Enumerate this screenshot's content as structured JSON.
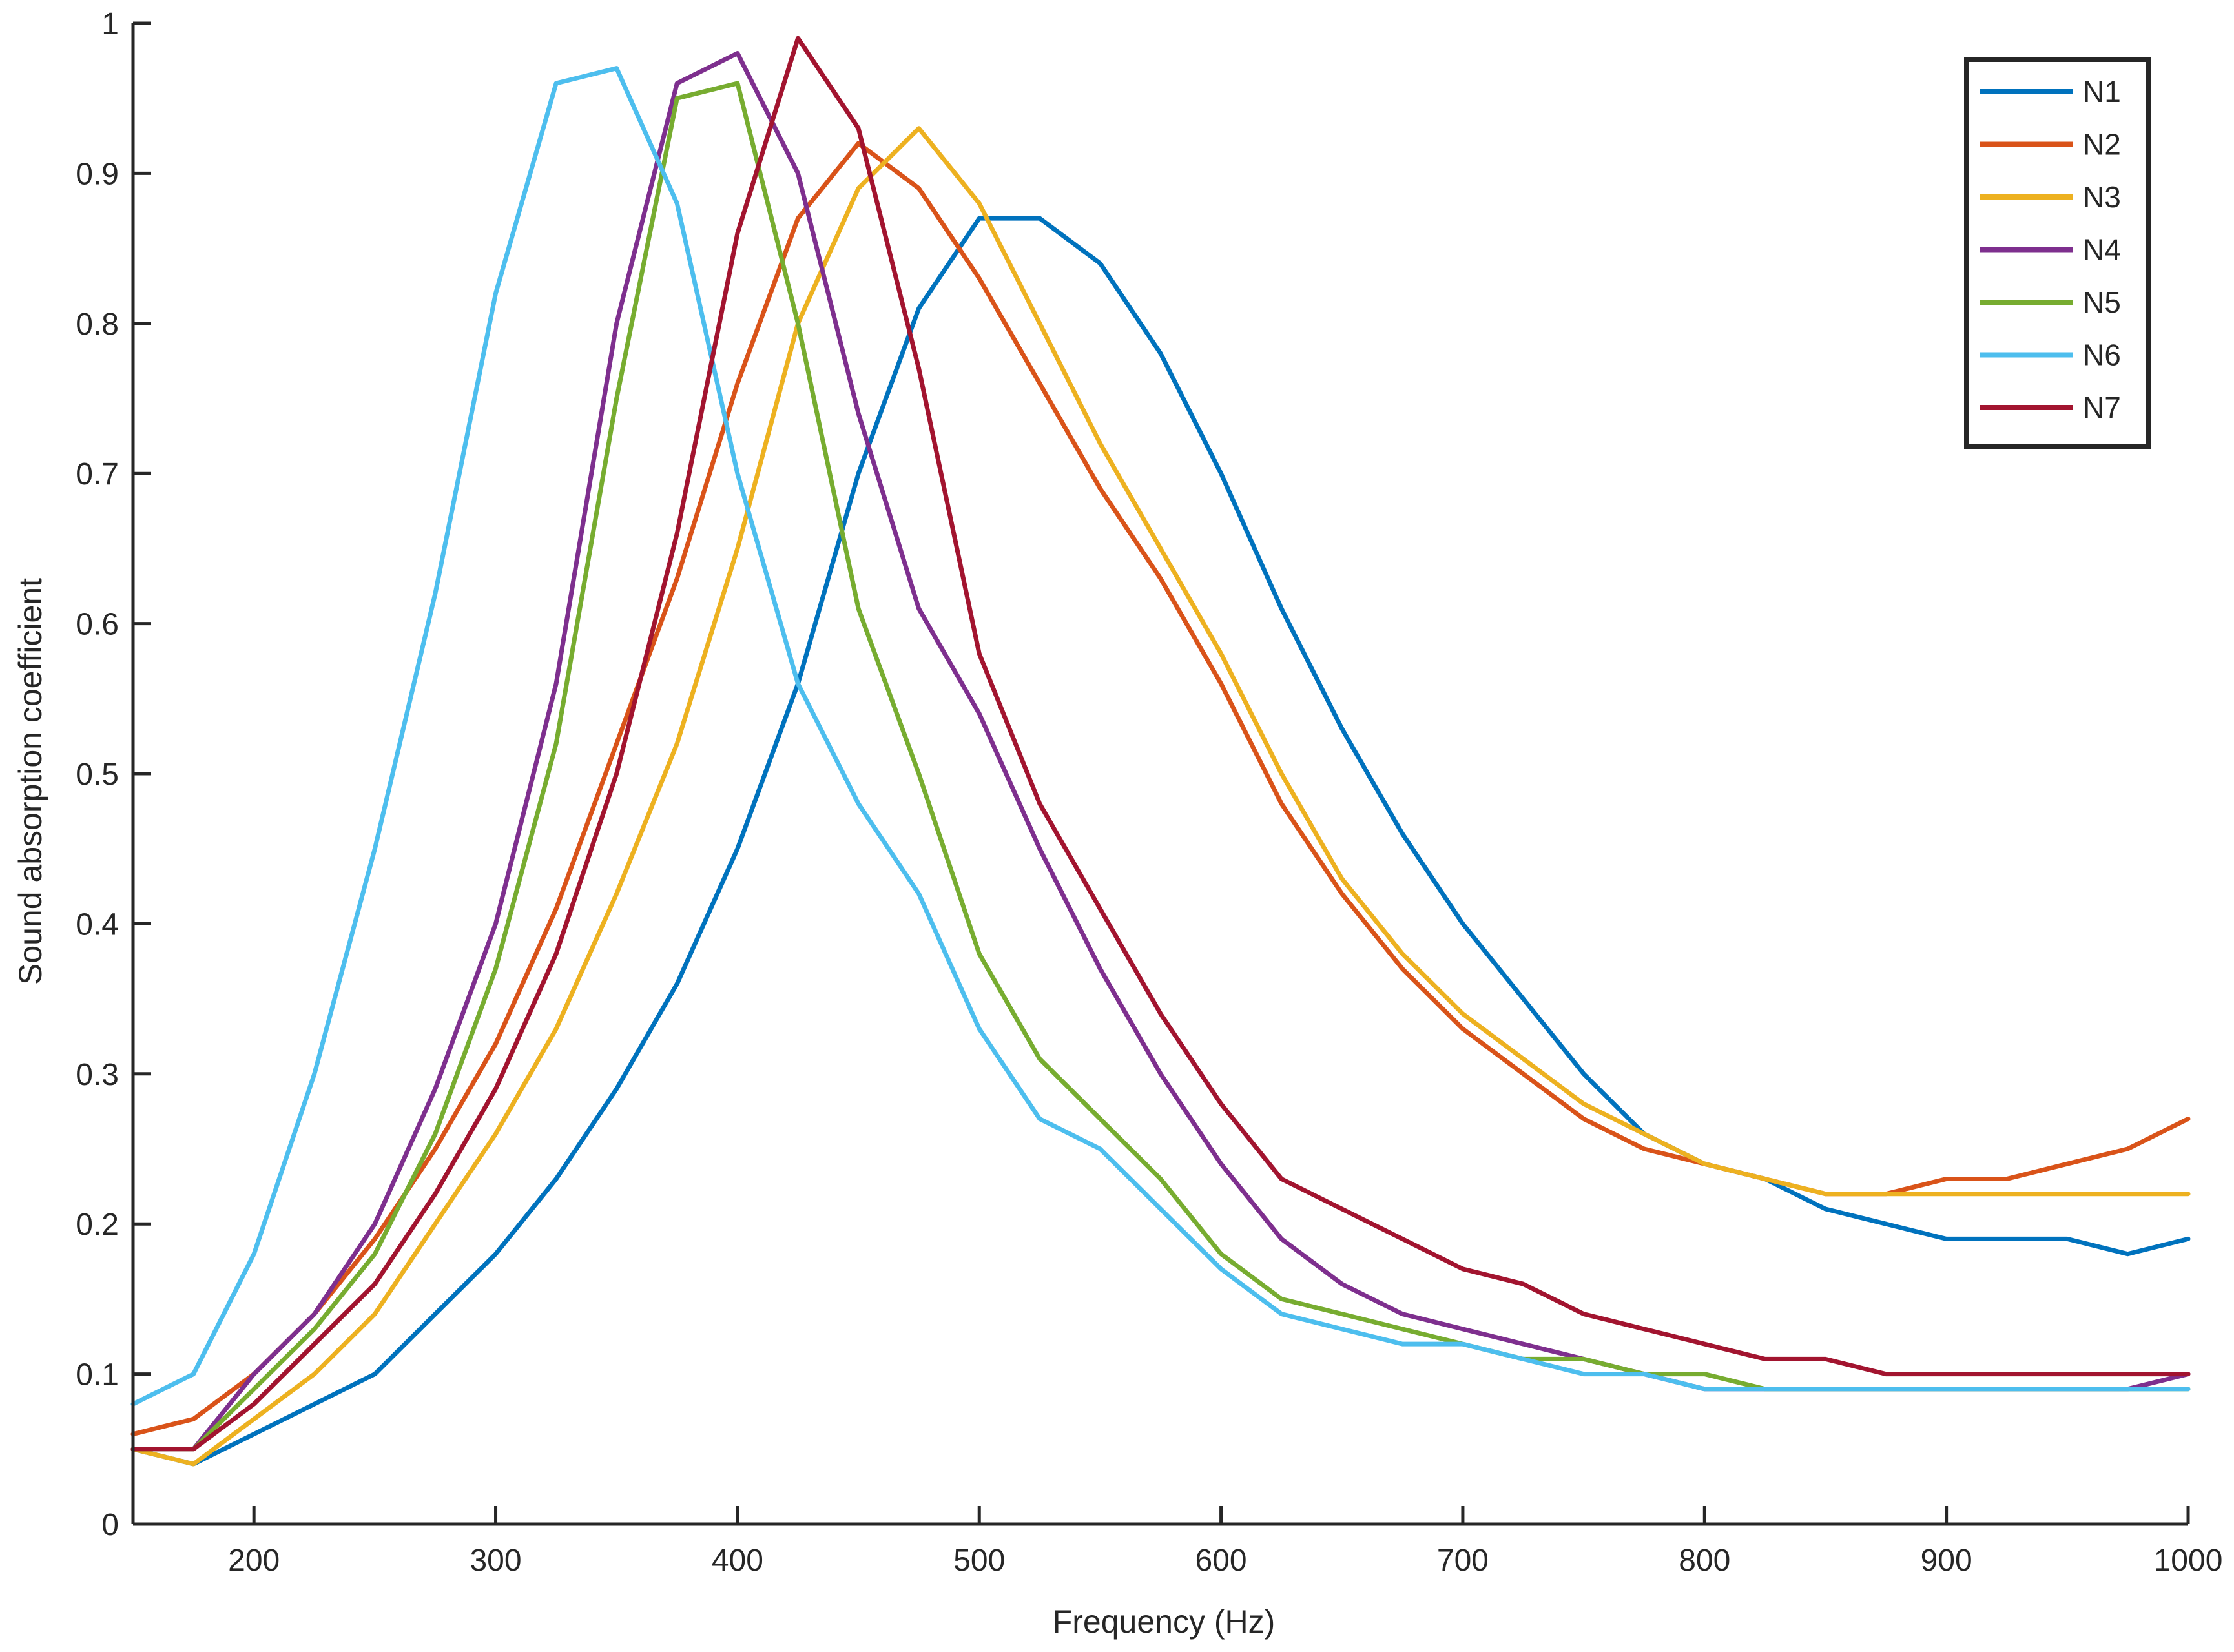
{
  "chart_data": {
    "type": "line",
    "title": "",
    "xlabel": "Frequency (Hz)",
    "ylabel": "Sound absorption coefficient",
    "xlim": [
      150,
      1000
    ],
    "ylim": [
      0,
      1
    ],
    "xticks": [
      200,
      300,
      400,
      500,
      600,
      700,
      800,
      900,
      1000
    ],
    "yticks": [
      0,
      0.1,
      0.2,
      0.3,
      0.4,
      0.5,
      0.6,
      0.7,
      0.8,
      0.9,
      1
    ],
    "ytick_labels": [
      "0",
      "0.1",
      "0.2",
      "0.3",
      "0.4",
      "0.5",
      "0.6",
      "0.7",
      "0.8",
      "0.9",
      "1"
    ],
    "grid": false,
    "legend_position": "top-right",
    "x": [
      150,
      175,
      200,
      225,
      250,
      275,
      300,
      325,
      350,
      375,
      400,
      425,
      450,
      475,
      500,
      525,
      550,
      575,
      600,
      625,
      650,
      675,
      700,
      725,
      750,
      775,
      800,
      825,
      850,
      875,
      900,
      925,
      950,
      975,
      1000
    ],
    "series": [
      {
        "name": "N1",
        "color": "#0072BD",
        "values": [
          0.05,
          0.04,
          0.06,
          0.08,
          0.1,
          0.14,
          0.18,
          0.23,
          0.29,
          0.36,
          0.45,
          0.56,
          0.7,
          0.81,
          0.87,
          0.87,
          0.84,
          0.78,
          0.7,
          0.61,
          0.53,
          0.46,
          0.4,
          0.35,
          0.3,
          0.26,
          0.24,
          0.23,
          0.21,
          0.2,
          0.19,
          0.19,
          0.19,
          0.18,
          0.19
        ]
      },
      {
        "name": "N2",
        "color": "#D95319",
        "values": [
          0.06,
          0.07,
          0.1,
          0.14,
          0.19,
          0.25,
          0.32,
          0.41,
          0.52,
          0.63,
          0.76,
          0.87,
          0.92,
          0.89,
          0.83,
          0.76,
          0.69,
          0.63,
          0.56,
          0.48,
          0.42,
          0.37,
          0.33,
          0.3,
          0.27,
          0.25,
          0.24,
          0.23,
          0.22,
          0.22,
          0.23,
          0.23,
          0.24,
          0.25,
          0.27
        ]
      },
      {
        "name": "N3",
        "color": "#EDB120",
        "values": [
          0.05,
          0.04,
          0.07,
          0.1,
          0.14,
          0.2,
          0.26,
          0.33,
          0.42,
          0.52,
          0.65,
          0.8,
          0.89,
          0.93,
          0.88,
          0.8,
          0.72,
          0.65,
          0.58,
          0.5,
          0.43,
          0.38,
          0.34,
          0.31,
          0.28,
          0.26,
          0.24,
          0.23,
          0.22,
          0.22,
          0.22,
          0.22,
          0.22,
          0.22,
          0.22
        ]
      },
      {
        "name": "N4",
        "color": "#7E2F8E",
        "values": [
          0.05,
          0.05,
          0.1,
          0.14,
          0.2,
          0.29,
          0.4,
          0.56,
          0.8,
          0.96,
          0.98,
          0.9,
          0.74,
          0.61,
          0.54,
          0.45,
          0.37,
          0.3,
          0.24,
          0.19,
          0.16,
          0.14,
          0.13,
          0.12,
          0.11,
          0.1,
          0.09,
          0.09,
          0.09,
          0.09,
          0.09,
          0.09,
          0.09,
          0.09,
          0.1
        ]
      },
      {
        "name": "N5",
        "color": "#77AC30",
        "values": [
          0.05,
          0.05,
          0.09,
          0.13,
          0.18,
          0.26,
          0.37,
          0.52,
          0.75,
          0.95,
          0.96,
          0.8,
          0.61,
          0.5,
          0.38,
          0.31,
          0.27,
          0.23,
          0.18,
          0.15,
          0.14,
          0.13,
          0.12,
          0.11,
          0.11,
          0.1,
          0.1,
          0.09,
          0.09,
          0.09,
          0.09,
          0.09,
          0.09,
          0.09,
          0.09
        ]
      },
      {
        "name": "N6",
        "color": "#4DBEEE",
        "values": [
          0.08,
          0.1,
          0.18,
          0.3,
          0.45,
          0.62,
          0.82,
          0.96,
          0.97,
          0.88,
          0.7,
          0.56,
          0.48,
          0.42,
          0.33,
          0.27,
          0.25,
          0.21,
          0.17,
          0.14,
          0.13,
          0.12,
          0.12,
          0.11,
          0.1,
          0.1,
          0.09,
          0.09,
          0.09,
          0.09,
          0.09,
          0.09,
          0.09,
          0.09,
          0.09
        ]
      },
      {
        "name": "N7",
        "color": "#A2142F",
        "values": [
          0.05,
          0.05,
          0.08,
          0.12,
          0.16,
          0.22,
          0.29,
          0.38,
          0.5,
          0.66,
          0.86,
          0.99,
          0.93,
          0.77,
          0.58,
          0.48,
          0.41,
          0.34,
          0.28,
          0.23,
          0.21,
          0.19,
          0.17,
          0.16,
          0.14,
          0.13,
          0.12,
          0.11,
          0.11,
          0.1,
          0.1,
          0.1,
          0.1,
          0.1,
          0.1
        ]
      }
    ]
  }
}
